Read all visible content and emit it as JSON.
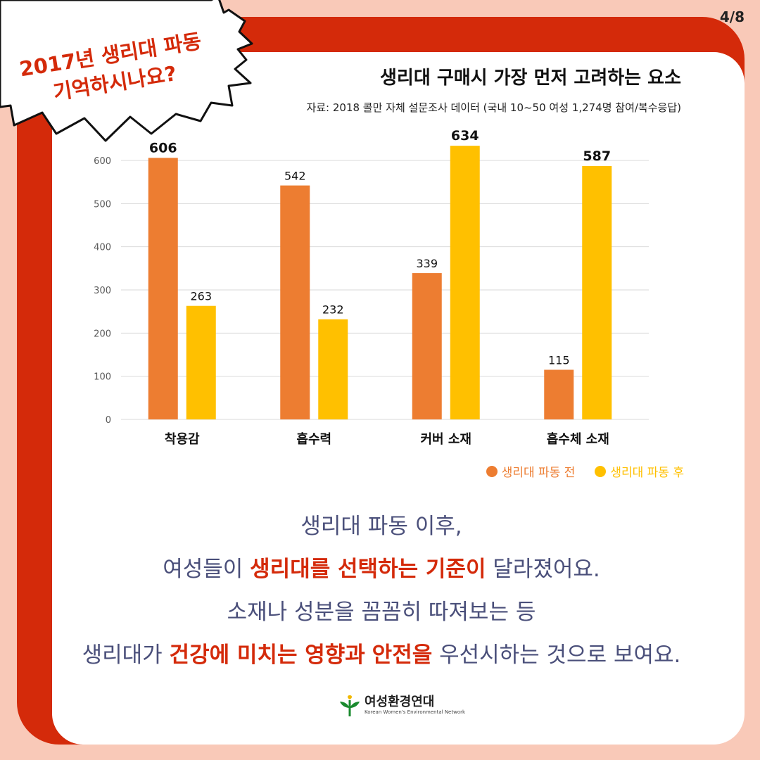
{
  "page_indicator": "4/8",
  "burst": {
    "line1": "2017년 생리대 파동",
    "line2": "기억하시나요?"
  },
  "header": {
    "title": "생리대 구매시 가장 먼저 고려하는 요소",
    "source": "자료: 2018 콜만 자체 설문조사 데이터 (국내 10~50 여성 1,274명 참여/복수응답)"
  },
  "colors": {
    "before": "#ed7d31",
    "after": "#ffc000",
    "accent": "#d42a0a",
    "text_blue": "#4a4f7a",
    "background": "#f9c9b8"
  },
  "chart_data": {
    "type": "bar",
    "title": "생리대 구매시 가장 먼저 고려하는 요소",
    "categories": [
      "착용감",
      "흡수력",
      "커버 소재",
      "흡수체 소재"
    ],
    "series": [
      {
        "name": "생리대 파동 전",
        "values": [
          606,
          542,
          339,
          115
        ]
      },
      {
        "name": "생리대 파동 후",
        "values": [
          263,
          232,
          634,
          587
        ]
      }
    ],
    "value_labels": [
      [
        "606",
        "542",
        "339",
        "115"
      ],
      [
        "263",
        "232",
        "634",
        "587"
      ]
    ],
    "ylim": [
      0,
      600
    ],
    "yticks": [
      0,
      100,
      200,
      300,
      400,
      500,
      600
    ],
    "ytick_labels": [
      "0",
      "100",
      "200",
      "300",
      "400",
      "500",
      "600"
    ],
    "grid": true,
    "legend_position": "bottom-right"
  },
  "description": {
    "line1": "생리대 파동 이후,",
    "line2_pre": "여성들이 ",
    "line2_hl": "생리대를 선택하는 기준이",
    "line2_post": " 달라졌어요.",
    "line3": "소재나 성분을 꼼꼼히 따져보는 등",
    "line4_pre": "생리대가 ",
    "line4_hl1": "건강에 미치는 영향과",
    "line4_mid": " ",
    "line4_hl2": "안전을",
    "line4_post": " 우선시하는 것으로 보여요."
  },
  "logo": {
    "name": "여성환경연대",
    "sub": "Korean Women's Environmental Network"
  }
}
